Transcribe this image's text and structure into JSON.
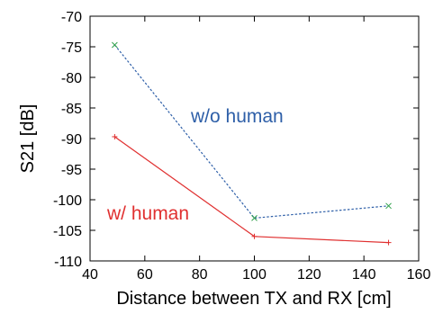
{
  "chart_data": {
    "type": "line",
    "title": "",
    "xlabel": "Distance between TX and RX [cm]",
    "ylabel": "S21 [dB]",
    "xlim": [
      40,
      160
    ],
    "ylim": [
      -110,
      -70
    ],
    "xticks": [
      40,
      60,
      80,
      100,
      120,
      140,
      160
    ],
    "yticks": [
      -70,
      -75,
      -80,
      -85,
      -90,
      -95,
      -100,
      -105,
      -110
    ],
    "xtick_labels": [
      "40",
      "60",
      "80",
      "100",
      "120",
      "140",
      "160"
    ],
    "ytick_labels": [
      "-70",
      "-75",
      "-80",
      "-85",
      "-90",
      "-95",
      "-100",
      "-105",
      "-110"
    ],
    "grid": false,
    "series": [
      {
        "name": "w/o human",
        "x": [
          49,
          100,
          149
        ],
        "y": [
          -74.7,
          -103,
          -101
        ],
        "color": "#2e5fa8",
        "line_style": "dashed",
        "marker": "x"
      },
      {
        "name": "w/ human",
        "x": [
          49,
          100,
          149
        ],
        "y": [
          -89.7,
          -106,
          -107
        ],
        "color": "#e03030",
        "line_style": "solid",
        "marker": "+"
      }
    ],
    "annotations": [
      {
        "text": "w/o human",
        "color": "#2e5fa8"
      },
      {
        "text": "w/ human",
        "color": "#e03030"
      }
    ]
  }
}
